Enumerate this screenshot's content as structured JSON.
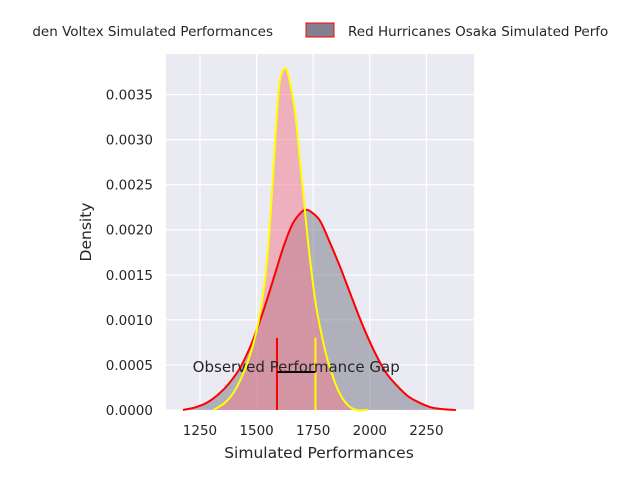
{
  "chart_data": {
    "type": "area",
    "xlabel": "Simulated Performances",
    "ylabel": "Density",
    "xlim": [
      1100,
      2460
    ],
    "ylim": [
      0,
      0.00395
    ],
    "x_ticks": [
      1250,
      1500,
      1750,
      2000,
      2250
    ],
    "y_ticks": [
      0.0,
      0.0005,
      0.001,
      0.0015,
      0.002,
      0.0025,
      0.003,
      0.0035
    ],
    "y_tick_labels": [
      "0.0000",
      "0.0005",
      "0.0010",
      "0.0015",
      "0.0020",
      "0.0025",
      "0.0030",
      "0.0035"
    ],
    "grid": true,
    "legend_position": "top (outside, clipped at page edges)",
    "series": [
      {
        "name": "Golden Voltex Simulated Performances",
        "legend_label": "den Voltex Simulated Performances",
        "fill_color": "#f08090",
        "fill_opacity": 0.55,
        "line_color": "#ffff00",
        "x": [
          1310,
          1360,
          1400,
          1440,
          1480,
          1510,
          1540,
          1560,
          1580,
          1600,
          1620,
          1635,
          1650,
          1670,
          1690,
          1710,
          1730,
          1760,
          1790,
          1820,
          1860,
          1900,
          1940,
          1990
        ],
        "y": [
          0.0,
          8e-05,
          0.0002,
          0.0004,
          0.00068,
          0.001,
          0.0015,
          0.0021,
          0.0029,
          0.0036,
          0.00378,
          0.00376,
          0.0036,
          0.0033,
          0.0028,
          0.0023,
          0.0018,
          0.0012,
          0.0008,
          0.0005,
          0.00022,
          6e-05,
          0.0,
          0.0
        ]
      },
      {
        "name": "Red Hurricanes Osaka Simulated Performances",
        "legend_label": "Red Hurricanes Osaka Simulated Perfo",
        "fill_color": "#808090",
        "fill_opacity": 0.55,
        "line_color": "#ff0000",
        "x": [
          1175,
          1230,
          1280,
          1330,
          1380,
          1430,
          1480,
          1530,
          1580,
          1620,
          1660,
          1700,
          1720,
          1740,
          1780,
          1820,
          1870,
          1920,
          1970,
          2020,
          2070,
          2120,
          2170,
          2220,
          2270,
          2320,
          2380
        ],
        "y": [
          0.0,
          3e-05,
          8e-05,
          0.00017,
          0.0003,
          0.00048,
          0.00075,
          0.0011,
          0.0015,
          0.00182,
          0.00207,
          0.0022,
          0.00222,
          0.0022,
          0.0021,
          0.00188,
          0.00158,
          0.00125,
          0.00093,
          0.00065,
          0.00042,
          0.00027,
          0.00015,
          8e-05,
          3e-05,
          1e-05,
          0.0
        ]
      }
    ],
    "annotation": {
      "text": "Observed Performance Gap",
      "x_start": 1590,
      "x_end": 1760,
      "y": 0.0004,
      "marker_top": 0.0008,
      "start_color": "#ff0000",
      "end_color": "#ffff00",
      "line_color": "#000000"
    },
    "colors": {
      "plot_background": "#eaeaf2",
      "grid": "#ffffff"
    }
  }
}
